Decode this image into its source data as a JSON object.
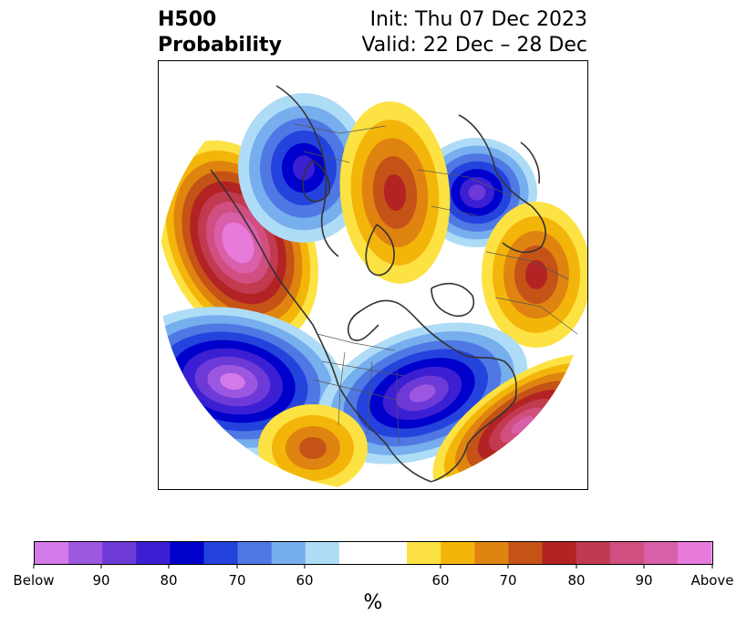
{
  "title": {
    "left_line1": "H500",
    "left_line2": "Probability",
    "right_line1": "Init: Thu 07 Dec 2023",
    "right_line2": "Valid: 22 Dec – 28 Dec"
  },
  "colorbar": {
    "unit": "%",
    "labels": [
      "Below",
      "90",
      "80",
      "70",
      "60",
      "60",
      "70",
      "80",
      "90",
      "Above"
    ],
    "below_colors": [
      "#d27ae8",
      "#9c57e0",
      "#6d3ad8",
      "#3c1fd2",
      "#0000cc",
      "#2443dc",
      "#4f78e4",
      "#76aeee",
      "#aedcf7"
    ],
    "neutral_color": "#ffffff",
    "above_colors": [
      "#fde243",
      "#f4b50a",
      "#df8410",
      "#c55217",
      "#b32323",
      "#c13a50",
      "#d04e80",
      "#d85fa8",
      "#e77adb"
    ]
  },
  "map": {
    "anomalies": [
      {
        "name": "gulf-of-alaska-high",
        "sign": "above",
        "peak": 9
      },
      {
        "name": "north-pacific-low",
        "sign": "below",
        "peak": 8
      },
      {
        "name": "east-siberia-low",
        "sign": "below",
        "peak": 5
      },
      {
        "name": "ural-low",
        "sign": "below",
        "peak": 6
      },
      {
        "name": "europe-high",
        "sign": "above",
        "peak": 4
      },
      {
        "name": "arctic-high",
        "sign": "above",
        "peak": 4
      },
      {
        "name": "eastern-us-low",
        "sign": "below",
        "peak": 7
      },
      {
        "name": "atlantic-high",
        "sign": "above",
        "peak": 7
      },
      {
        "name": "southwest-us-high",
        "sign": "above",
        "peak": 3
      }
    ]
  }
}
